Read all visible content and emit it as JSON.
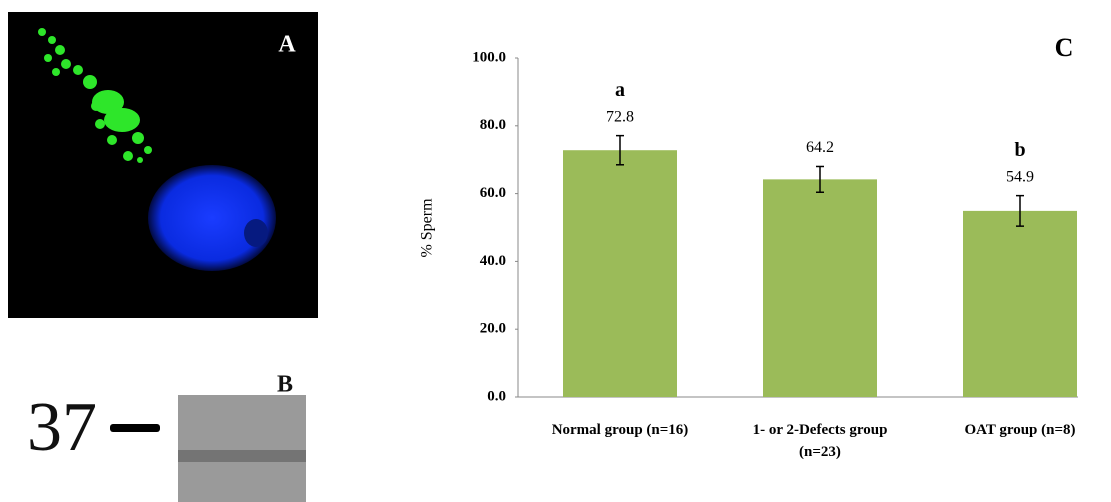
{
  "panel_a": {
    "label": "A"
  },
  "panel_b": {
    "label": "B",
    "marker": "37"
  },
  "chart_data": {
    "type": "bar",
    "panel_label": "C",
    "ylabel": "% Sperm",
    "categories": [
      "Normal group (n=16)",
      "1- or 2-Defects group (n=23)",
      "OAT group (n=8)"
    ],
    "values": [
      72.8,
      64.2,
      54.9
    ],
    "errors": [
      4.3,
      3.8,
      4.5
    ],
    "significance_letters": [
      "a",
      null,
      "b"
    ],
    "color": "#9bbb59",
    "ylim": [
      0,
      100
    ],
    "yticks": [
      {
        "value": 0,
        "label": "0.0"
      },
      {
        "value": 20,
        "label": "20.0"
      },
      {
        "value": 40,
        "label": "40.0"
      },
      {
        "value": 60,
        "label": "60.0"
      },
      {
        "value": 80,
        "label": "80.0"
      },
      {
        "value": 100,
        "label": "100.0"
      }
    ],
    "grid": false
  }
}
